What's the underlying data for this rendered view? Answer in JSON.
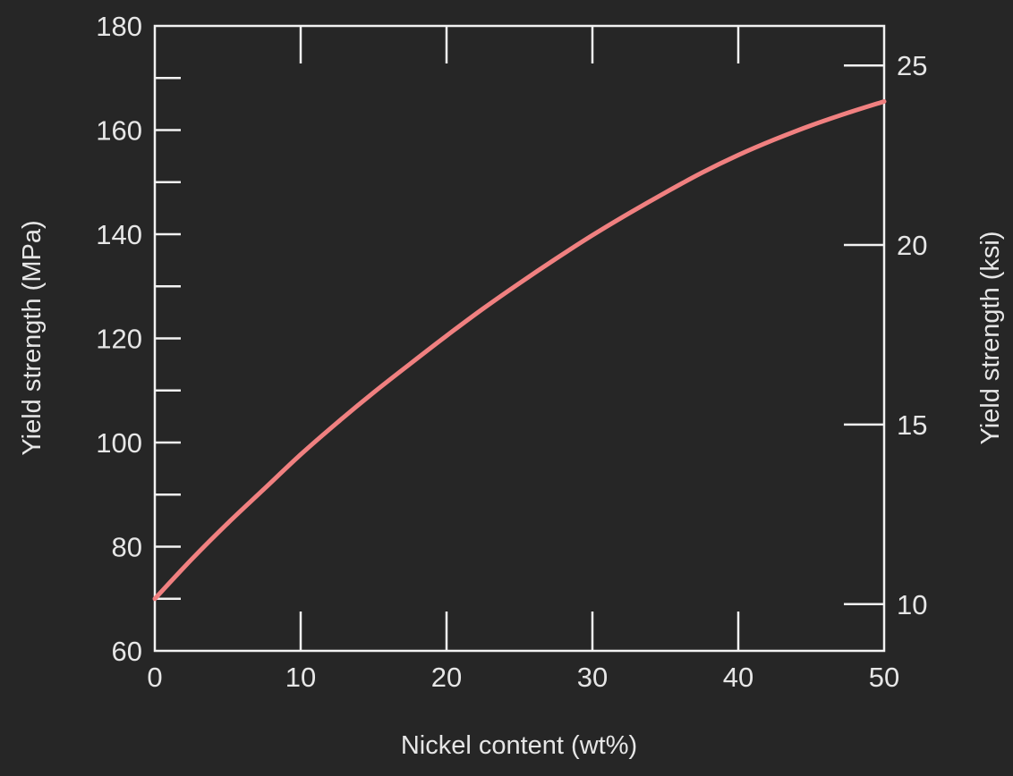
{
  "chart_data": {
    "type": "line",
    "xlabel": "Nickel content (wt%)",
    "ylabel": "Yield strength (MPa)",
    "y2label": "Yield strength (ksi)",
    "xlim": [
      0,
      50
    ],
    "ylim": [
      60,
      180
    ],
    "y2lim": [
      8.7,
      26.1
    ],
    "x_ticks": [
      "0",
      "10",
      "20",
      "30",
      "40",
      "50"
    ],
    "y_ticks": [
      "60",
      "80",
      "100",
      "120",
      "140",
      "160",
      "180"
    ],
    "y2_ticks": [
      "10",
      "15",
      "20",
      "25"
    ],
    "y2_tick_values": [
      10,
      15,
      20,
      25
    ],
    "grid": false,
    "series": [
      {
        "color": "#f08080",
        "x": [
          0,
          2.5,
          5,
          7.5,
          10,
          12.5,
          15,
          17.5,
          20,
          22.5,
          25,
          27.5,
          30,
          32.5,
          35,
          37.5,
          40,
          42.5,
          45,
          47.5,
          50
        ],
        "y": [
          70,
          77.5,
          84.5,
          91.1,
          97.7,
          103.8,
          109.6,
          115.1,
          120.5,
          125.7,
          130.6,
          135.3,
          139.8,
          144,
          148,
          151.8,
          155.2,
          158.2,
          160.9,
          163.3,
          165.5
        ]
      }
    ]
  }
}
